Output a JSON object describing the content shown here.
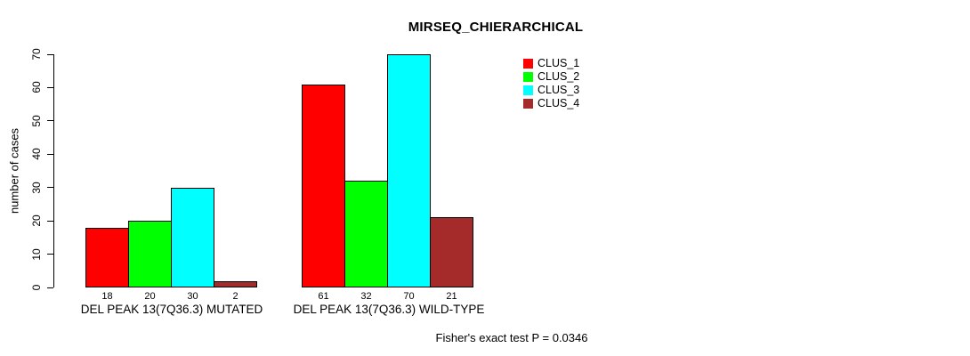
{
  "chart_data": {
    "type": "bar",
    "title": "MIRSEQ_CHIERARCHICAL",
    "ylabel": "number of cases",
    "xlabel": "",
    "ylim": [
      0,
      70
    ],
    "yticks": [
      0,
      10,
      20,
      30,
      40,
      50,
      60,
      70
    ],
    "grid": false,
    "legend_position": "top-right",
    "categories": [
      "DEL PEAK 13(7Q36.3) MUTATED",
      "DEL PEAK 13(7Q36.3) WILD-TYPE"
    ],
    "series": [
      {
        "name": "CLUS_1",
        "color": "#ff0000",
        "values": [
          18,
          61
        ]
      },
      {
        "name": "CLUS_2",
        "color": "#00ff00",
        "values": [
          20,
          32
        ]
      },
      {
        "name": "CLUS_3",
        "color": "#00ffff",
        "values": [
          30,
          70
        ]
      },
      {
        "name": "CLUS_4",
        "color": "#a52a2a",
        "values": [
          2,
          21
        ]
      }
    ],
    "bar_value_labels": [
      [
        18,
        20,
        30,
        2
      ],
      [
        61,
        32,
        70,
        21
      ]
    ],
    "annotation": "Fisher's exact test P = 0.0346"
  }
}
